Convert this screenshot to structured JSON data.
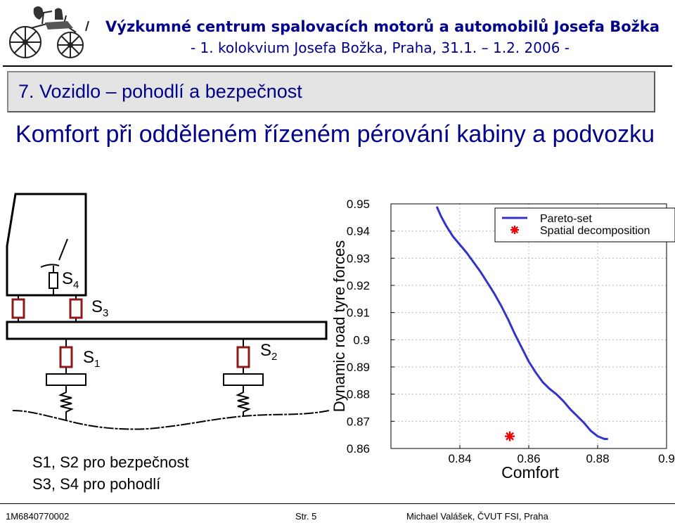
{
  "header": {
    "title": "Výzkumné centrum spalovacích motorů a automobilů Josefa Božka",
    "subtitle": "- 1. kolokvium Josefa Božka, Praha, 31.1. – 1.2. 2006 -"
  },
  "section": {
    "title": "7. Vozidlo – pohodlí a bezpečnost"
  },
  "slide": {
    "title": "Komfort při odděleném řízeném pérování kabiny a podvozku"
  },
  "diagram": {
    "labels": {
      "s1": "S",
      "s1_sub": "1",
      "s2": "S",
      "s2_sub": "2",
      "s3": "S",
      "s3_sub": "3",
      "s4": "S",
      "s4_sub": "4"
    },
    "legend": [
      "S1, S2 pro bezpečnost",
      "S3, S4 pro pohodlí"
    ],
    "damper_color": "#8b1a1a"
  },
  "chart_data": {
    "type": "line",
    "xlabel": "Comfort",
    "ylabel": "Dynamic road tyre forces",
    "xlim": [
      0.82,
      0.9
    ],
    "ylim": [
      0.86,
      0.95
    ],
    "x_ticks": [
      {
        "v": 0.84,
        "label": "0.84"
      },
      {
        "v": 0.86,
        "label": "0.86"
      },
      {
        "v": 0.88,
        "label": "0.88"
      },
      {
        "v": 0.9,
        "label": "0.9"
      }
    ],
    "y_ticks": [
      {
        "v": 0.95,
        "label": "0.95"
      },
      {
        "v": 0.94,
        "label": "0.94"
      },
      {
        "v": 0.93,
        "label": "0.93"
      },
      {
        "v": 0.92,
        "label": "0.92"
      },
      {
        "v": 0.91,
        "label": "0.91"
      },
      {
        "v": 0.9,
        "label": "0.9"
      },
      {
        "v": 0.89,
        "label": "0.89"
      },
      {
        "v": 0.88,
        "label": "0.88"
      },
      {
        "v": 0.87,
        "label": "0.87"
      },
      {
        "v": 0.86,
        "label": "0.86"
      }
    ],
    "grid": true,
    "legend_position": "top-right",
    "series": [
      {
        "name": "Pareto-set",
        "style": "line",
        "color": "#3333cc",
        "x": [
          0.8333,
          0.8345,
          0.836,
          0.838,
          0.84,
          0.842,
          0.844,
          0.846,
          0.848,
          0.85,
          0.852,
          0.854,
          0.856,
          0.858,
          0.86,
          0.862,
          0.864,
          0.866,
          0.868,
          0.87,
          0.872,
          0.874,
          0.876,
          0.878,
          0.88,
          0.882,
          0.883
        ],
        "y": [
          0.949,
          0.9455,
          0.942,
          0.938,
          0.935,
          0.932,
          0.9285,
          0.925,
          0.921,
          0.917,
          0.9125,
          0.9075,
          0.902,
          0.897,
          0.892,
          0.888,
          0.8845,
          0.882,
          0.88,
          0.8775,
          0.8745,
          0.872,
          0.8695,
          0.8665,
          0.8645,
          0.8635,
          0.8635
        ]
      },
      {
        "name": "Spatial decomposition",
        "style": "marker",
        "marker": "asterisk",
        "color": "#ee0000",
        "x": [
          0.8545
        ],
        "y": [
          0.8645
        ]
      }
    ]
  },
  "footer": {
    "left": "1M6840770002",
    "center": "Str. 5",
    "right": "Michael Valášek, ČVUT FSI, Praha"
  }
}
